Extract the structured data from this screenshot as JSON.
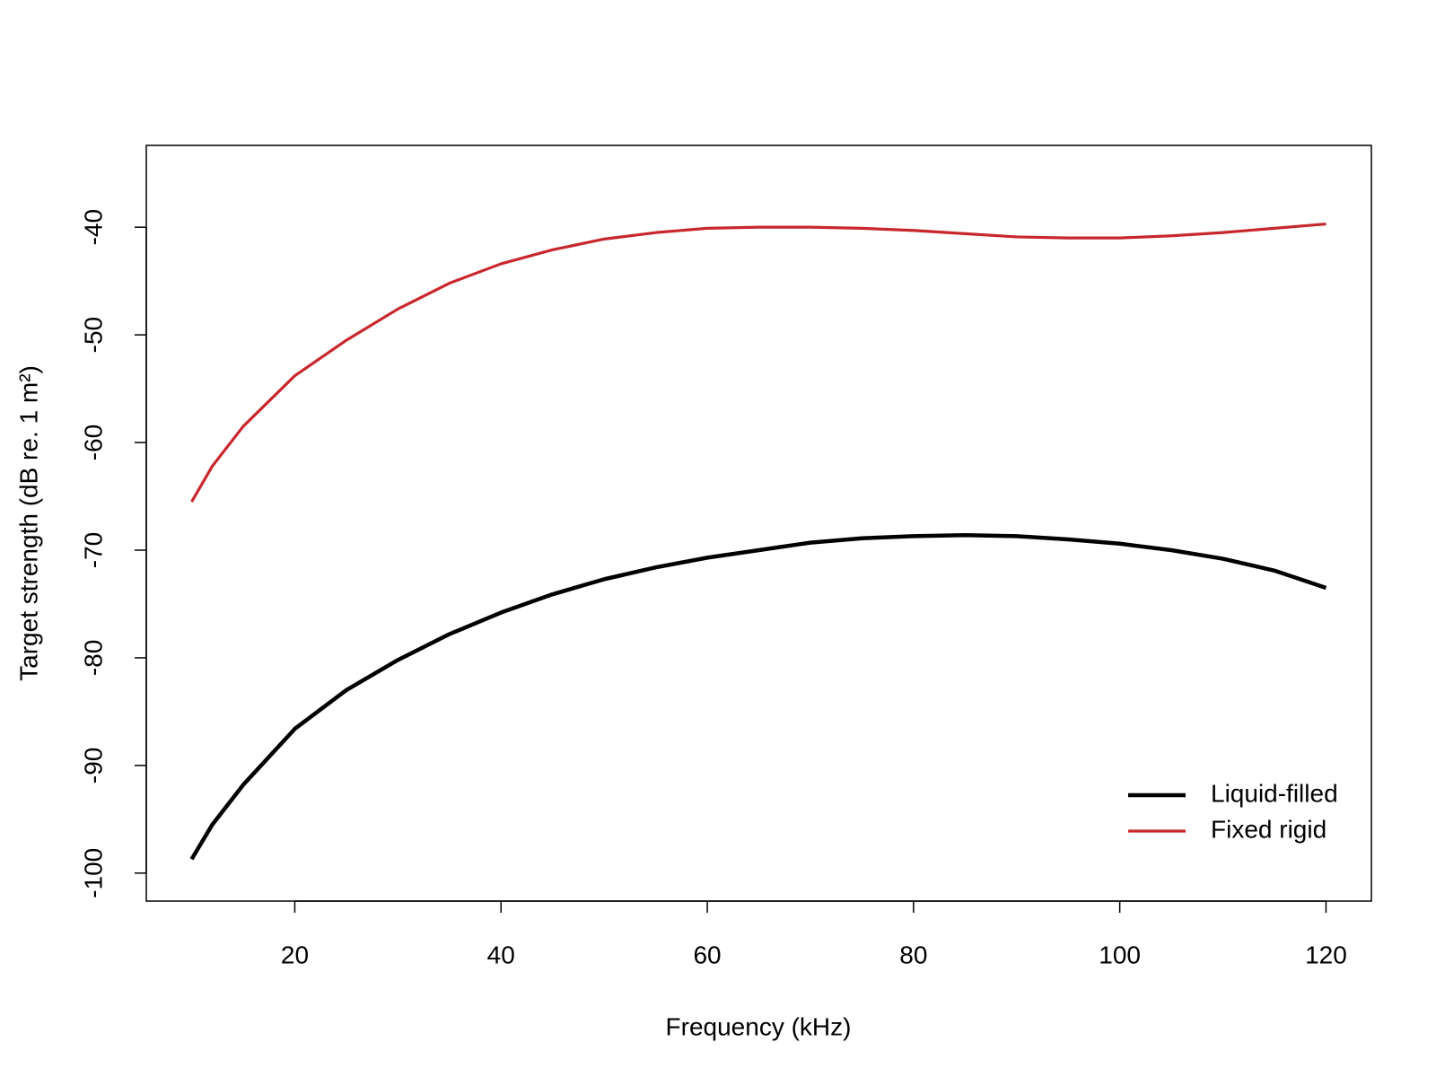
{
  "chart_data": {
    "type": "line",
    "x_label": "Frequency (kHz)",
    "y_label": "Target strength (dB re. 1 m²)",
    "x": [
      10,
      12,
      15,
      20,
      25,
      30,
      35,
      40,
      45,
      50,
      55,
      60,
      65,
      70,
      75,
      80,
      85,
      90,
      95,
      100,
      105,
      110,
      115,
      120
    ],
    "series": [
      {
        "name": "Liquid-filled",
        "color": "#000000",
        "values": [
          -98.7,
          -95.5,
          -91.8,
          -86.6,
          -83.0,
          -80.2,
          -77.8,
          -75.8,
          -74.1,
          -72.7,
          -71.6,
          -70.7,
          -70.0,
          -69.3,
          -68.9,
          -68.7,
          -68.6,
          -68.7,
          -69.0,
          -69.4,
          -70.0,
          -70.8,
          -71.9,
          -73.5
        ]
      },
      {
        "name": "Fixed rigid",
        "color": "#c8272d",
        "values": [
          -65.5,
          -62.2,
          -58.5,
          -53.8,
          -50.5,
          -47.6,
          -45.2,
          -43.4,
          -42.1,
          -41.1,
          -40.5,
          -40.1,
          -40.0,
          -40.0,
          -40.1,
          -40.3,
          -40.6,
          -40.9,
          -41.0,
          -41.0,
          -40.8,
          -40.5,
          -40.1,
          -39.7
        ]
      }
    ],
    "xlim": [
      5.6,
      124.4
    ],
    "xticks": [
      20,
      40,
      60,
      80,
      100,
      120
    ],
    "ylim": [
      -102.6,
      -32.4
    ],
    "yticks": [
      -100,
      -90,
      -80,
      -70,
      -60,
      -50,
      -40
    ],
    "legend": "bottom-right"
  }
}
